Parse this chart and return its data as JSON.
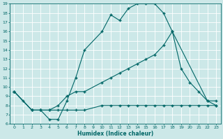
{
  "xlabel": "Humidex (Indice chaleur)",
  "background_color": "#cce8e8",
  "grid_color": "#ffffff",
  "line_color": "#006666",
  "xlim": [
    -0.5,
    23.5
  ],
  "ylim": [
    6,
    19
  ],
  "xticks": [
    0,
    1,
    2,
    3,
    4,
    5,
    6,
    7,
    8,
    9,
    10,
    11,
    12,
    13,
    14,
    15,
    16,
    17,
    18,
    19,
    20,
    21,
    22,
    23
  ],
  "yticks": [
    6,
    7,
    8,
    9,
    10,
    11,
    12,
    13,
    14,
    15,
    16,
    17,
    18,
    19
  ],
  "line1_x": [
    0,
    1,
    2,
    3,
    4,
    5,
    6,
    7,
    8,
    10,
    11,
    12,
    13,
    14,
    15,
    16,
    17,
    18,
    22,
    23
  ],
  "line1_y": [
    9.5,
    8.5,
    7.5,
    7.5,
    6.5,
    6.5,
    8.5,
    11,
    14,
    16,
    17.8,
    17.2,
    18.5,
    19,
    19,
    19,
    18,
    16,
    8.5,
    8.0
  ],
  "line2_x": [
    0,
    2,
    3,
    4,
    5,
    6,
    7,
    8,
    10,
    11,
    12,
    13,
    14,
    15,
    16,
    17,
    18,
    19,
    20,
    21,
    22,
    23
  ],
  "line2_y": [
    9.5,
    7.5,
    7.5,
    7.5,
    7.5,
    7.5,
    7.5,
    7.5,
    8.0,
    8.0,
    8.0,
    8.0,
    8.0,
    8.0,
    8.0,
    8.0,
    8.0,
    8.0,
    8.0,
    8.0,
    8.0,
    8.0
  ],
  "line3_x": [
    0,
    2,
    3,
    4,
    5,
    6,
    7,
    8,
    10,
    11,
    12,
    13,
    14,
    15,
    16,
    17,
    18,
    19,
    20,
    21,
    22,
    23
  ],
  "line3_y": [
    9.5,
    7.5,
    7.5,
    7.5,
    8.0,
    9.0,
    9.5,
    9.5,
    10.5,
    11.0,
    11.5,
    12.0,
    12.5,
    13.0,
    13.5,
    14.5,
    16.0,
    12.0,
    10.5,
    9.5,
    8.5,
    8.5
  ]
}
